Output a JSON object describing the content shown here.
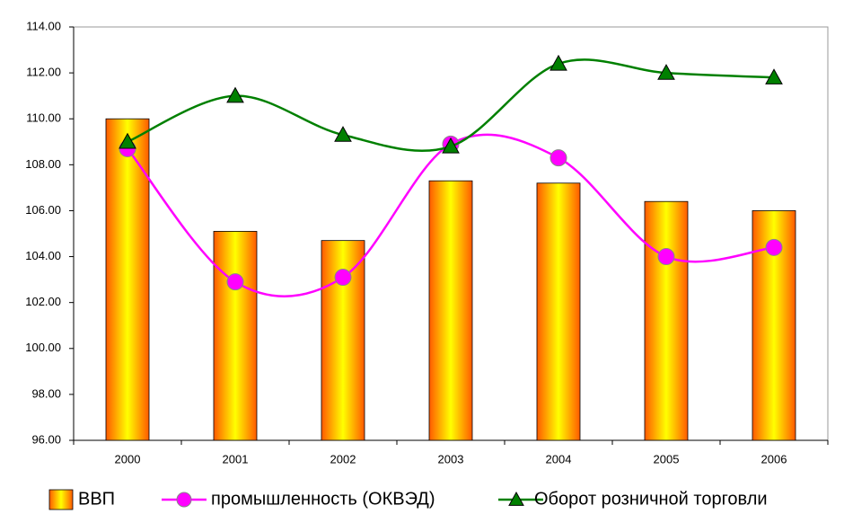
{
  "chart_data": {
    "type": "bar-line",
    "categories": [
      "2000",
      "2001",
      "2002",
      "2003",
      "2004",
      "2005",
      "2006"
    ],
    "series": [
      {
        "name": "ВВП",
        "type": "bar",
        "color": "#ff6600",
        "values": [
          110.0,
          105.1,
          104.7,
          107.3,
          107.2,
          106.4,
          106.0
        ]
      },
      {
        "name": "промышленность (ОКВЭД)",
        "type": "line",
        "marker": "circle",
        "color": "#ff00ff",
        "values": [
          108.7,
          102.9,
          103.1,
          108.9,
          108.3,
          104.0,
          104.4
        ]
      },
      {
        "name": "Оборот розничной торговли",
        "type": "line",
        "marker": "triangle",
        "color": "#008000",
        "values": [
          109.0,
          111.0,
          109.3,
          108.8,
          112.4,
          112.0,
          111.8
        ]
      }
    ],
    "ylim": [
      96,
      114
    ],
    "yticks": [
      {
        "value": 96,
        "label": "96.00"
      },
      {
        "value": 98,
        "label": "98.00"
      },
      {
        "value": 100,
        "label": "100.00"
      },
      {
        "value": 102,
        "label": "102.00"
      },
      {
        "value": 104,
        "label": "104.00"
      },
      {
        "value": 106,
        "label": "106.00"
      },
      {
        "value": 108,
        "label": "108.00"
      },
      {
        "value": 110,
        "label": "110.00"
      },
      {
        "value": 112,
        "label": "112.00"
      },
      {
        "value": 114,
        "label": "114.00"
      }
    ],
    "legend": "bottom"
  }
}
